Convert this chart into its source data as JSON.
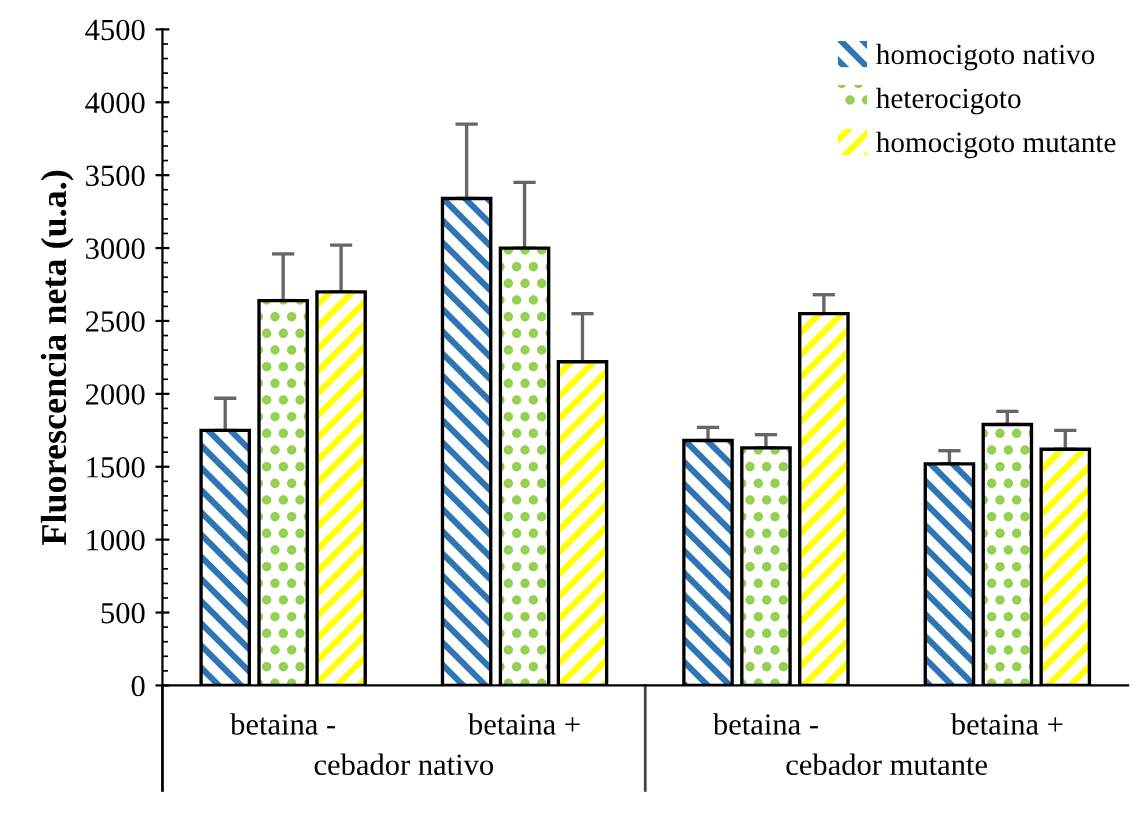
{
  "chart_data": {
    "type": "bar",
    "ylabel": "Fluorescencia neta (u.a.)",
    "categories": [
      "betaina -",
      "betaina +",
      "betaina -",
      "betaina +"
    ],
    "series": [
      {
        "name": "homocigoto nativo",
        "color": "#2e75b6",
        "values": [
          1750,
          3340,
          1680,
          1520
        ],
        "errors": [
          [
            1750,
            1970
          ],
          [
            3340,
            3850
          ],
          [
            1680,
            1770
          ],
          [
            1520,
            1610
          ]
        ]
      },
      {
        "name": "heterocigoto",
        "color": "#92d050",
        "values": [
          2640,
          3000,
          1630,
          1790
        ],
        "errors": [
          [
            2640,
            2960
          ],
          [
            3000,
            3450
          ],
          [
            1630,
            1720
          ],
          [
            1790,
            1880
          ]
        ]
      },
      {
        "name": "homocigoto mutante",
        "color": "#ffff00",
        "values": [
          2700,
          2220,
          2550,
          1620
        ],
        "errors": [
          [
            2700,
            3020
          ],
          [
            2220,
            2550
          ],
          [
            2550,
            2680
          ],
          [
            1620,
            1750
          ]
        ]
      }
    ],
    "annotations": [
      "cebador nativo",
      "cebador mutante"
    ],
    "ylim": [
      0,
      4500
    ],
    "yticks": [
      0,
      500,
      1000,
      1500,
      2000,
      2500,
      3000,
      3500,
      4000,
      4500
    ],
    "grid": false,
    "legend": "top right"
  }
}
